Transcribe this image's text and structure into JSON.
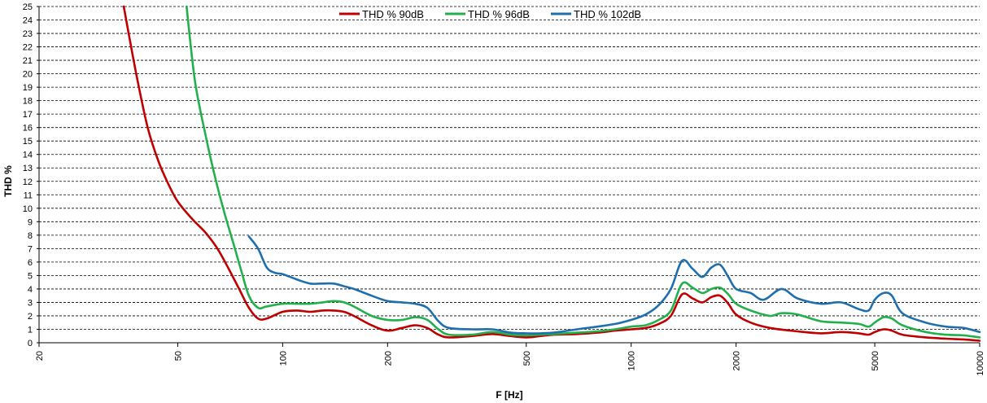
{
  "chart_data": {
    "type": "line",
    "xlabel": "F [Hz]",
    "ylabel": "THD %",
    "xscale": "log",
    "xlim": [
      20,
      10000
    ],
    "ylim": [
      0,
      25
    ],
    "grid": true,
    "legend_position": "top",
    "x_ticks": [
      20,
      50,
      100,
      200,
      500,
      1000,
      2000,
      5000,
      10000
    ],
    "x_tick_labels": [
      "20",
      "50",
      "100",
      "200",
      "500",
      "1000",
      "2000",
      "5000",
      "10000"
    ],
    "y_ticks": [
      0,
      1,
      2,
      3,
      4,
      5,
      6,
      7,
      8,
      9,
      10,
      11,
      12,
      13,
      14,
      15,
      16,
      17,
      18,
      19,
      20,
      21,
      22,
      23,
      24,
      25
    ],
    "y_tick_labels": [
      "0",
      "1",
      "2",
      "3",
      "4",
      "5",
      "6",
      "7",
      "8",
      "9",
      "10",
      "11",
      "12",
      "13",
      "14",
      "15",
      "16",
      "17",
      "18",
      "19",
      "20",
      "21",
      "22",
      "23",
      "24",
      "25"
    ],
    "series": [
      {
        "name": "THD % 90dB",
        "color": "#c00000",
        "x": [
          35,
          38,
          41,
          44,
          47,
          50,
          55,
          60,
          65,
          70,
          75,
          80,
          85,
          90,
          100,
          110,
          120,
          130,
          140,
          150,
          160,
          180,
          200,
          220,
          240,
          260,
          280,
          300,
          350,
          400,
          450,
          500,
          550,
          600,
          700,
          800,
          900,
          1000,
          1100,
          1200,
          1300,
          1400,
          1500,
          1600,
          1700,
          1800,
          1900,
          2000,
          2200,
          2500,
          3000,
          3500,
          4000,
          4500,
          4800,
          5000,
          5300,
          5600,
          6000,
          7000,
          8000,
          9000,
          10000
        ],
        "y": [
          25,
          20,
          16,
          13.5,
          11.8,
          10.5,
          9.2,
          8.2,
          7.0,
          5.5,
          4.0,
          2.6,
          1.8,
          1.8,
          2.3,
          2.4,
          2.3,
          2.4,
          2.4,
          2.3,
          2.0,
          1.3,
          0.9,
          1.1,
          1.3,
          1.1,
          0.6,
          0.4,
          0.5,
          0.65,
          0.5,
          0.4,
          0.5,
          0.6,
          0.65,
          0.75,
          0.9,
          1.0,
          1.1,
          1.4,
          2.0,
          3.6,
          3.3,
          3.0,
          3.4,
          3.5,
          2.9,
          2.1,
          1.5,
          1.1,
          0.85,
          0.7,
          0.8,
          0.7,
          0.6,
          0.8,
          1.0,
          0.9,
          0.6,
          0.4,
          0.3,
          0.25,
          0.15
        ]
      },
      {
        "name": "THD % 96dB",
        "color": "#22b04c",
        "x": [
          53,
          56,
          60,
          64,
          68,
          72,
          76,
          80,
          85,
          90,
          100,
          110,
          120,
          130,
          140,
          150,
          160,
          180,
          200,
          220,
          240,
          260,
          280,
          300,
          350,
          400,
          450,
          500,
          550,
          600,
          700,
          800,
          900,
          1000,
          1100,
          1200,
          1300,
          1400,
          1500,
          1600,
          1700,
          1800,
          1900,
          2000,
          2200,
          2500,
          2700,
          3000,
          3500,
          4000,
          4500,
          4800,
          5000,
          5300,
          5600,
          6000,
          7000,
          8000,
          9000,
          10000
        ],
        "y": [
          25,
          19.5,
          15.5,
          12.3,
          9.7,
          7.5,
          5.4,
          3.5,
          2.6,
          2.7,
          2.9,
          2.9,
          2.9,
          3.0,
          3.1,
          3.0,
          2.7,
          2.0,
          1.7,
          1.7,
          1.9,
          1.7,
          1.0,
          0.6,
          0.6,
          0.8,
          0.6,
          0.55,
          0.6,
          0.65,
          0.75,
          0.85,
          1.0,
          1.2,
          1.3,
          1.7,
          2.4,
          4.4,
          4.1,
          3.7,
          4.0,
          4.1,
          3.6,
          2.9,
          2.4,
          2.0,
          2.2,
          2.1,
          1.6,
          1.5,
          1.4,
          1.2,
          1.5,
          1.9,
          1.8,
          1.3,
          0.8,
          0.6,
          0.55,
          0.4
        ]
      },
      {
        "name": "THD % 102dB",
        "color": "#1f6fad",
        "x": [
          80,
          85,
          90,
          95,
          100,
          110,
          120,
          130,
          140,
          150,
          160,
          180,
          200,
          220,
          240,
          260,
          280,
          300,
          350,
          400,
          450,
          500,
          550,
          600,
          700,
          800,
          900,
          1000,
          1100,
          1200,
          1300,
          1400,
          1500,
          1600,
          1700,
          1800,
          1900,
          2000,
          2200,
          2400,
          2700,
          3000,
          3500,
          4000,
          4500,
          4800,
          5000,
          5300,
          5600,
          6000,
          7000,
          8000,
          9000,
          10000
        ],
        "y": [
          7.9,
          7.0,
          5.6,
          5.2,
          5.1,
          4.7,
          4.4,
          4.4,
          4.4,
          4.2,
          4.0,
          3.5,
          3.1,
          3.0,
          2.9,
          2.6,
          1.6,
          1.1,
          1.0,
          1.0,
          0.75,
          0.7,
          0.7,
          0.75,
          1.0,
          1.2,
          1.4,
          1.7,
          2.1,
          2.8,
          4.0,
          6.1,
          5.5,
          4.9,
          5.6,
          5.8,
          4.9,
          4.0,
          3.7,
          3.2,
          4.0,
          3.3,
          2.9,
          3.0,
          2.5,
          2.4,
          3.2,
          3.7,
          3.5,
          2.2,
          1.5,
          1.2,
          1.1,
          0.8
        ]
      }
    ]
  }
}
